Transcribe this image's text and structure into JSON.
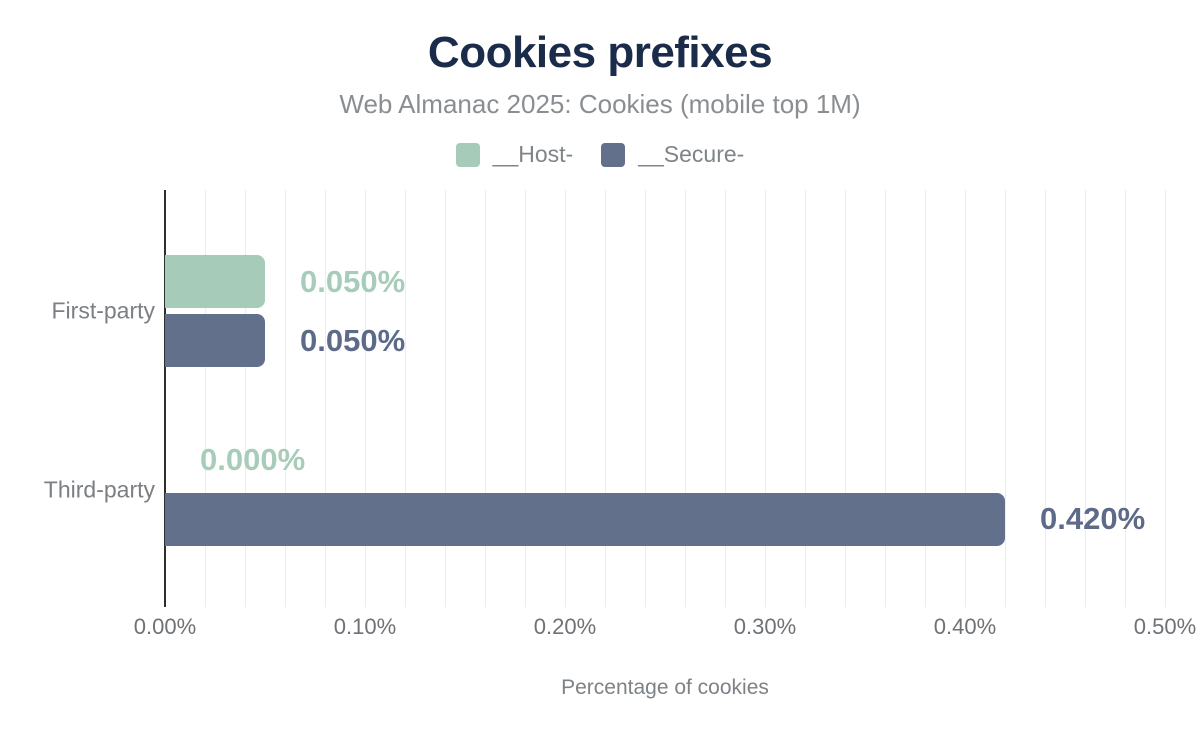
{
  "chart_data": {
    "type": "bar",
    "orientation": "horizontal",
    "title": "Cookies prefixes",
    "subtitle": "Web Almanac 2025: Cookies (mobile top 1M)",
    "xlabel": "Percentage of cookies",
    "categories": [
      "First-party",
      "Third-party"
    ],
    "series": [
      {
        "name": "__Host-",
        "color": "#a7cbb9",
        "label_color": "#a8ccba",
        "values": [
          0.05,
          0.0
        ],
        "value_labels": [
          "0.050%",
          "0.000%"
        ]
      },
      {
        "name": "__Secure-",
        "color": "#62708c",
        "label_color": "#5d6b89",
        "values": [
          0.05,
          0.42
        ],
        "value_labels": [
          "0.050%",
          "0.420%"
        ]
      }
    ],
    "x_ticks": [
      "0.00%",
      "0.10%",
      "0.20%",
      "0.30%",
      "0.40%",
      "0.50%"
    ],
    "x_tick_values": [
      0,
      0.1,
      0.2,
      0.3,
      0.4,
      0.5
    ],
    "xlim": [
      0,
      0.5
    ],
    "gridline_step": 0.02,
    "grid": true,
    "legend_position": "top"
  },
  "palette": {
    "title_color": "#1b2b4a",
    "subtitle_color": "#8a8e92",
    "axis_line_color": "#2e2e2e",
    "gridline_color": "#ededed",
    "tick_label_color": "#6e7276",
    "category_label_color": "#7b7f84"
  }
}
